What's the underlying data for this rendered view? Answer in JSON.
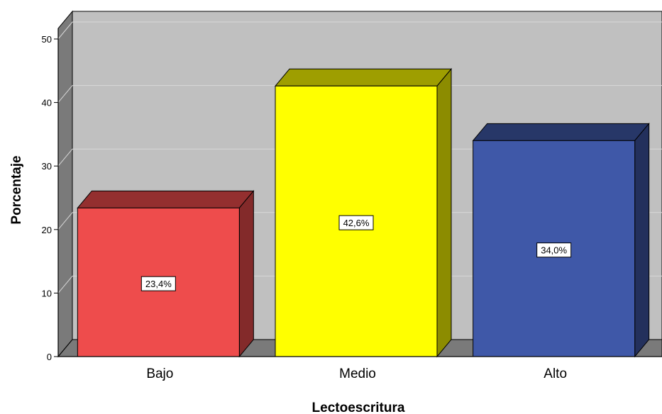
{
  "chart_data": {
    "type": "bar",
    "categories": [
      "Bajo",
      "Medio",
      "Alto"
    ],
    "values": [
      23.4,
      42.6,
      34.0
    ],
    "data_labels": [
      "23,4%",
      "42,6%",
      "34,0%"
    ],
    "colors": [
      "#ee4c4c",
      "#ffff00",
      "#3f58a8"
    ],
    "xlabel": "Lectoescritura",
    "ylabel": "Porcentaje",
    "ylim": [
      0,
      50
    ],
    "yticks": [
      "0",
      "10",
      "20",
      "30",
      "40",
      "50"
    ],
    "grid": true,
    "style": "3d-bars",
    "background_color": "#c0c0c0"
  }
}
